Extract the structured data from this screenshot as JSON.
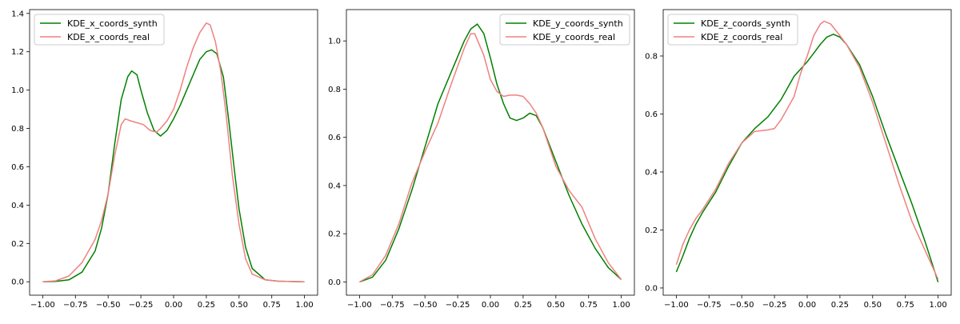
{
  "chart_data": [
    {
      "type": "line",
      "xticks": [
        "−1.00",
        "−0.75",
        "−0.50",
        "−0.25",
        "0.00",
        "0.25",
        "0.50",
        "0.75",
        "1.00"
      ],
      "yticks": [
        "0.0",
        "0.2",
        "0.4",
        "0.6",
        "0.8",
        "1.0",
        "1.2",
        "1.4"
      ],
      "xlim": [
        -1.1,
        1.1
      ],
      "ylim": [
        -0.07,
        1.42
      ],
      "grid": false,
      "legend_position": "top-left",
      "series": [
        {
          "name": "KDE_x_coords_synth",
          "color": "#008000",
          "points": [
            [
              -1.0,
              0.0
            ],
            [
              -0.9,
              0.002
            ],
            [
              -0.8,
              0.01
            ],
            [
              -0.7,
              0.05
            ],
            [
              -0.6,
              0.16
            ],
            [
              -0.55,
              0.28
            ],
            [
              -0.5,
              0.46
            ],
            [
              -0.45,
              0.72
            ],
            [
              -0.4,
              0.95
            ],
            [
              -0.35,
              1.07
            ],
            [
              -0.32,
              1.1
            ],
            [
              -0.28,
              1.08
            ],
            [
              -0.25,
              1.0
            ],
            [
              -0.2,
              0.88
            ],
            [
              -0.15,
              0.79
            ],
            [
              -0.1,
              0.76
            ],
            [
              -0.05,
              0.79
            ],
            [
              0.0,
              0.85
            ],
            [
              0.05,
              0.92
            ],
            [
              0.1,
              1.0
            ],
            [
              0.15,
              1.08
            ],
            [
              0.2,
              1.16
            ],
            [
              0.25,
              1.2
            ],
            [
              0.29,
              1.21
            ],
            [
              0.33,
              1.19
            ],
            [
              0.38,
              1.07
            ],
            [
              0.42,
              0.85
            ],
            [
              0.47,
              0.55
            ],
            [
              0.5,
              0.38
            ],
            [
              0.55,
              0.18
            ],
            [
              0.6,
              0.07
            ],
            [
              0.7,
              0.01
            ],
            [
              0.8,
              0.003
            ],
            [
              1.0,
              0.0
            ]
          ]
        },
        {
          "name": "KDE_x_coords_real",
          "color": "#f08080",
          "points": [
            [
              -1.0,
              0.0
            ],
            [
              -0.9,
              0.005
            ],
            [
              -0.8,
              0.03
            ],
            [
              -0.7,
              0.1
            ],
            [
              -0.6,
              0.22
            ],
            [
              -0.55,
              0.32
            ],
            [
              -0.5,
              0.46
            ],
            [
              -0.45,
              0.66
            ],
            [
              -0.4,
              0.82
            ],
            [
              -0.37,
              0.85
            ],
            [
              -0.33,
              0.84
            ],
            [
              -0.28,
              0.83
            ],
            [
              -0.23,
              0.82
            ],
            [
              -0.18,
              0.79
            ],
            [
              -0.13,
              0.78
            ],
            [
              -0.1,
              0.8
            ],
            [
              -0.05,
              0.84
            ],
            [
              0.0,
              0.9
            ],
            [
              0.05,
              1.0
            ],
            [
              0.1,
              1.12
            ],
            [
              0.15,
              1.22
            ],
            [
              0.2,
              1.3
            ],
            [
              0.25,
              1.35
            ],
            [
              0.28,
              1.34
            ],
            [
              0.32,
              1.25
            ],
            [
              0.36,
              1.1
            ],
            [
              0.4,
              0.88
            ],
            [
              0.45,
              0.55
            ],
            [
              0.5,
              0.3
            ],
            [
              0.55,
              0.12
            ],
            [
              0.6,
              0.04
            ],
            [
              0.7,
              0.01
            ],
            [
              0.8,
              0.003
            ],
            [
              1.0,
              0.0
            ]
          ]
        }
      ]
    },
    {
      "type": "line",
      "xticks": [
        "−1.00",
        "−0.75",
        "−0.50",
        "−0.25",
        "0.00",
        "0.25",
        "0.50",
        "0.75",
        "1.00"
      ],
      "yticks": [
        "0.0",
        "0.2",
        "0.4",
        "0.6",
        "0.8",
        "1.0"
      ],
      "xlim": [
        -1.1,
        1.1
      ],
      "ylim": [
        -0.055,
        1.13
      ],
      "grid": false,
      "legend_position": "top-right",
      "series": [
        {
          "name": "KDE_y_coords_synth",
          "color": "#008000",
          "points": [
            [
              -1.0,
              0.0
            ],
            [
              -0.9,
              0.02
            ],
            [
              -0.8,
              0.09
            ],
            [
              -0.7,
              0.22
            ],
            [
              -0.6,
              0.38
            ],
            [
              -0.5,
              0.56
            ],
            [
              -0.4,
              0.74
            ],
            [
              -0.3,
              0.87
            ],
            [
              -0.2,
              1.0
            ],
            [
              -0.15,
              1.05
            ],
            [
              -0.1,
              1.07
            ],
            [
              -0.05,
              1.03
            ],
            [
              0.0,
              0.93
            ],
            [
              0.05,
              0.82
            ],
            [
              0.1,
              0.74
            ],
            [
              0.15,
              0.68
            ],
            [
              0.2,
              0.67
            ],
            [
              0.25,
              0.68
            ],
            [
              0.3,
              0.7
            ],
            [
              0.35,
              0.69
            ],
            [
              0.4,
              0.64
            ],
            [
              0.5,
              0.5
            ],
            [
              0.6,
              0.36
            ],
            [
              0.7,
              0.24
            ],
            [
              0.8,
              0.14
            ],
            [
              0.9,
              0.06
            ],
            [
              1.0,
              0.01
            ]
          ]
        },
        {
          "name": "KDE_y_coords_real",
          "color": "#f08080",
          "points": [
            [
              -1.0,
              0.0
            ],
            [
              -0.9,
              0.03
            ],
            [
              -0.8,
              0.11
            ],
            [
              -0.7,
              0.24
            ],
            [
              -0.6,
              0.41
            ],
            [
              -0.5,
              0.54
            ],
            [
              -0.4,
              0.66
            ],
            [
              -0.3,
              0.82
            ],
            [
              -0.2,
              0.97
            ],
            [
              -0.15,
              1.03
            ],
            [
              -0.12,
              1.03
            ],
            [
              -0.05,
              0.94
            ],
            [
              0.0,
              0.84
            ],
            [
              0.05,
              0.79
            ],
            [
              0.1,
              0.77
            ],
            [
              0.15,
              0.775
            ],
            [
              0.2,
              0.775
            ],
            [
              0.25,
              0.77
            ],
            [
              0.3,
              0.74
            ],
            [
              0.35,
              0.7
            ],
            [
              0.4,
              0.64
            ],
            [
              0.5,
              0.48
            ],
            [
              0.6,
              0.38
            ],
            [
              0.7,
              0.31
            ],
            [
              0.8,
              0.18
            ],
            [
              0.9,
              0.08
            ],
            [
              1.0,
              0.01
            ]
          ]
        }
      ]
    },
    {
      "type": "line",
      "xticks": [
        "−1.00",
        "−0.75",
        "−0.50",
        "−0.25",
        "0.00",
        "0.25",
        "0.50",
        "0.75",
        "1.00"
      ],
      "yticks": [
        "0.0",
        "0.2",
        "0.4",
        "0.6",
        "0.8"
      ],
      "xlim": [
        -1.1,
        1.1
      ],
      "ylim": [
        -0.025,
        0.96
      ],
      "grid": false,
      "legend_position": "top-left",
      "series": [
        {
          "name": "KDE_z_coords_synth",
          "color": "#008000",
          "points": [
            [
              -1.0,
              0.055
            ],
            [
              -0.95,
              0.11
            ],
            [
              -0.9,
              0.17
            ],
            [
              -0.85,
              0.22
            ],
            [
              -0.8,
              0.26
            ],
            [
              -0.7,
              0.33
            ],
            [
              -0.6,
              0.42
            ],
            [
              -0.5,
              0.5
            ],
            [
              -0.4,
              0.55
            ],
            [
              -0.3,
              0.59
            ],
            [
              -0.2,
              0.65
            ],
            [
              -0.1,
              0.73
            ],
            [
              0.0,
              0.78
            ],
            [
              0.05,
              0.81
            ],
            [
              0.1,
              0.84
            ],
            [
              0.15,
              0.865
            ],
            [
              0.2,
              0.875
            ],
            [
              0.25,
              0.865
            ],
            [
              0.3,
              0.84
            ],
            [
              0.4,
              0.77
            ],
            [
              0.5,
              0.66
            ],
            [
              0.6,
              0.53
            ],
            [
              0.7,
              0.41
            ],
            [
              0.8,
              0.29
            ],
            [
              0.9,
              0.16
            ],
            [
              0.95,
              0.09
            ],
            [
              1.0,
              0.02
            ]
          ]
        },
        {
          "name": "KDE_z_coords_real",
          "color": "#f08080",
          "points": [
            [
              -1.0,
              0.08
            ],
            [
              -0.95,
              0.15
            ],
            [
              -0.9,
              0.2
            ],
            [
              -0.85,
              0.24
            ],
            [
              -0.8,
              0.27
            ],
            [
              -0.7,
              0.34
            ],
            [
              -0.6,
              0.43
            ],
            [
              -0.5,
              0.5
            ],
            [
              -0.4,
              0.54
            ],
            [
              -0.3,
              0.545
            ],
            [
              -0.25,
              0.55
            ],
            [
              -0.2,
              0.58
            ],
            [
              -0.1,
              0.66
            ],
            [
              -0.05,
              0.74
            ],
            [
              0.0,
              0.8
            ],
            [
              0.05,
              0.87
            ],
            [
              0.1,
              0.91
            ],
            [
              0.13,
              0.92
            ],
            [
              0.18,
              0.91
            ],
            [
              0.25,
              0.87
            ],
            [
              0.3,
              0.84
            ],
            [
              0.4,
              0.76
            ],
            [
              0.5,
              0.64
            ],
            [
              0.6,
              0.5
            ],
            [
              0.7,
              0.36
            ],
            [
              0.8,
              0.23
            ],
            [
              0.9,
              0.13
            ],
            [
              1.0,
              0.03
            ]
          ]
        }
      ]
    }
  ]
}
